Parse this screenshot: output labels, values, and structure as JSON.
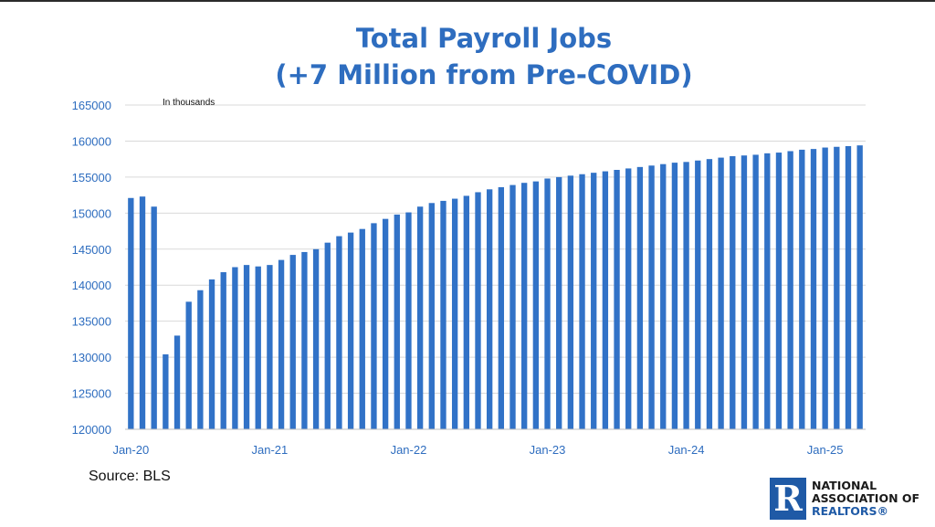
{
  "title": {
    "line1": "Total Payroll Jobs",
    "line2": "(+7 Million from Pre-COVID)"
  },
  "source": "Source: BLS",
  "logo": {
    "mark": "R",
    "line1": "NATIONAL",
    "line2": "ASSOCIATION OF",
    "line3": "REALTORS®"
  },
  "colors": {
    "bar": "#3172c7",
    "title": "#2e6dbf",
    "axis_text": "#2e6dbf",
    "grid": "#d9d9d9"
  },
  "chart_data": {
    "type": "bar",
    "annotation": "In thousands",
    "ylim": [
      120000,
      165000
    ],
    "yticks": [
      120000,
      125000,
      130000,
      135000,
      140000,
      145000,
      150000,
      155000,
      160000,
      165000
    ],
    "xtick_labels": [
      {
        "index": 0,
        "label": "Jan-20"
      },
      {
        "index": 12,
        "label": "Jan-21"
      },
      {
        "index": 24,
        "label": "Jan-22"
      },
      {
        "index": 36,
        "label": "Jan-23"
      },
      {
        "index": 48,
        "label": "Jan-24"
      },
      {
        "index": 60,
        "label": "Jan-25"
      }
    ],
    "grid": true,
    "legend": "none",
    "series": [
      {
        "values": [
          152100,
          152300,
          150900,
          130400,
          133000,
          137700,
          139300,
          140800,
          141800,
          142500,
          142800,
          142600,
          142800,
          143500,
          144200,
          144600,
          145000,
          145900,
          146800,
          147300,
          147800,
          148600,
          149200,
          149800,
          150100,
          150900,
          151400,
          151700,
          152000,
          152400,
          152900,
          153300,
          153600,
          153900,
          154200,
          154400,
          154800,
          155000,
          155200,
          155400,
          155600,
          155800,
          156000,
          156200,
          156400,
          156600,
          156800,
          157000,
          157100,
          157300,
          157500,
          157700,
          157900,
          158000,
          158100,
          158300,
          158400,
          158600,
          158800,
          158900,
          159100,
          159200,
          159300,
          159400
        ]
      }
    ]
  }
}
